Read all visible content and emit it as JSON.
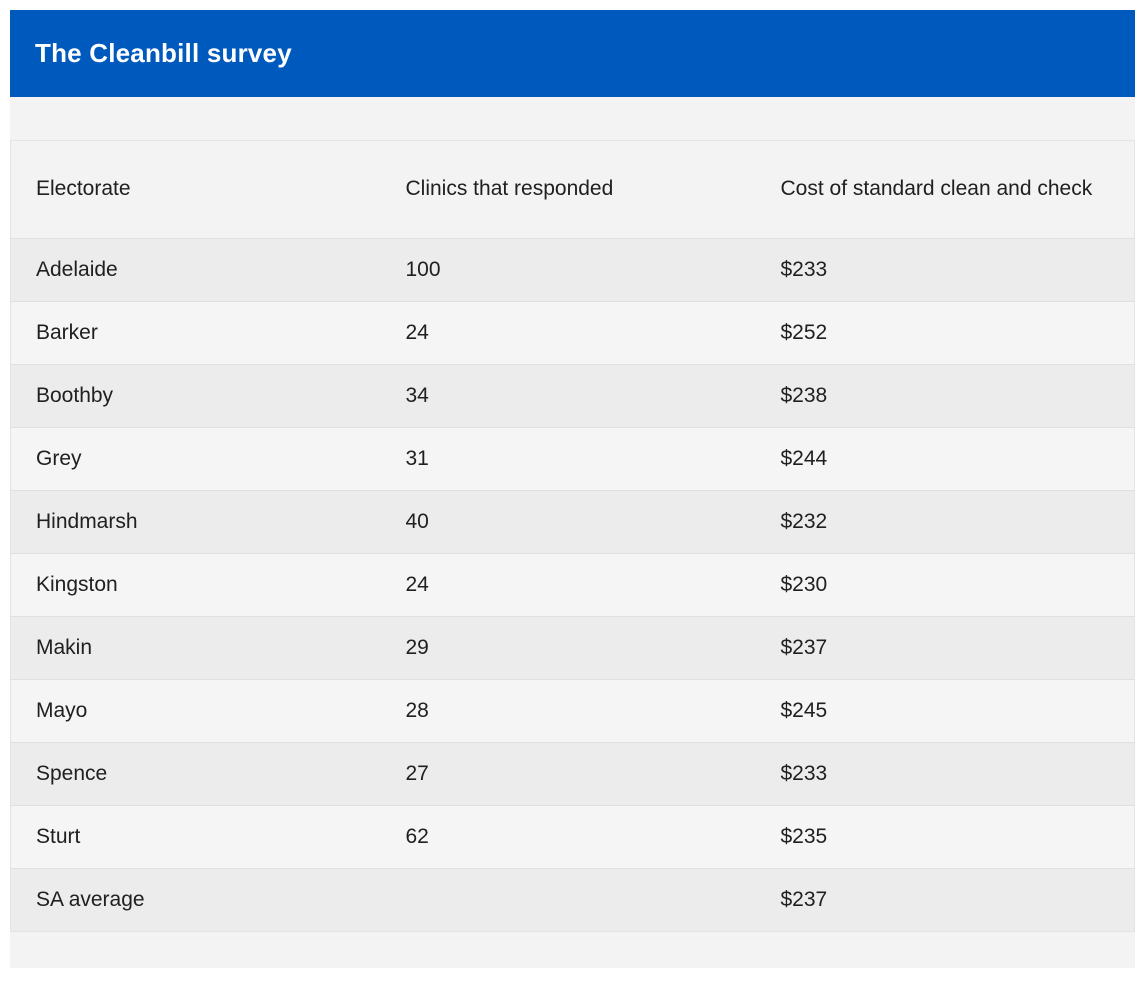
{
  "widget": {
    "title": "The Cleanbill survey"
  },
  "table": {
    "columns": {
      "electorate": "Electorate",
      "clinics": "Clinics that responded",
      "cost": "Cost of standard clean and check"
    },
    "rows": [
      {
        "electorate": "Adelaide",
        "clinics": "100",
        "cost": "$233"
      },
      {
        "electorate": "Barker",
        "clinics": "24",
        "cost": "$252"
      },
      {
        "electorate": "Boothby",
        "clinics": "34",
        "cost": "$238"
      },
      {
        "electorate": "Grey",
        "clinics": "31",
        "cost": "$244"
      },
      {
        "electorate": "Hindmarsh",
        "clinics": "40",
        "cost": "$232"
      },
      {
        "electorate": "Kingston",
        "clinics": "24",
        "cost": "$230"
      },
      {
        "electorate": "Makin",
        "clinics": "29",
        "cost": "$237"
      },
      {
        "electorate": "Mayo",
        "clinics": "28",
        "cost": "$245"
      },
      {
        "electorate": "Spence",
        "clinics": "27",
        "cost": "$233"
      },
      {
        "electorate": "Sturt",
        "clinics": "62",
        "cost": "$235"
      },
      {
        "electorate": "SA average",
        "clinics": "",
        "cost": "$237"
      }
    ]
  },
  "colors": {
    "accent_blue": "#0059bd",
    "widget_background": "#f2f3f2",
    "row_stripe_dark": "#ececec",
    "row_stripe_light": "#f5f5f5",
    "text": "#202020",
    "title_text": "#ffffff",
    "divider": "#e0e0e0"
  }
}
